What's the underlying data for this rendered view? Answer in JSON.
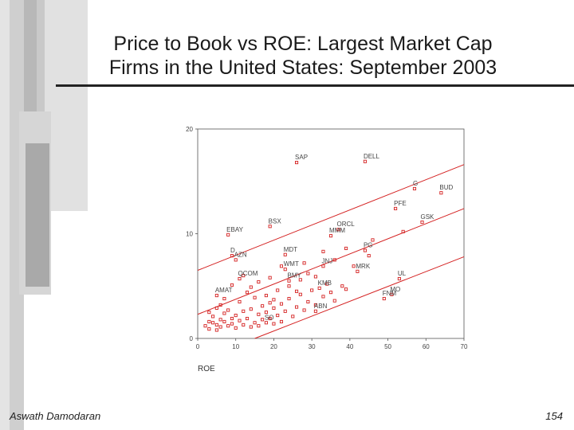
{
  "slide": {
    "title_line1": "Price to Book vs ROE: Largest Market Cap",
    "title_line2": "Firms in the United States: September 2003",
    "author": "Aswath Damodaran",
    "page_number": "154"
  },
  "chart_data": {
    "type": "scatter",
    "xlabel": "ROE",
    "ylabel": "",
    "xlim": [
      0,
      70
    ],
    "ylim": [
      0,
      20
    ],
    "x_ticks": [
      0,
      10,
      20,
      30,
      40,
      50,
      60,
      70
    ],
    "y_ticks": [
      {
        "value": 0,
        "label": "0"
      },
      {
        "value": 10,
        "label": "10"
      },
      {
        "value": 20,
        "label": "20"
      }
    ],
    "point_color": "#d42020",
    "line_color": "#d42020",
    "labeled_points": [
      {
        "label": "SAP",
        "x": 26,
        "y": 16.8
      },
      {
        "label": "DELL",
        "x": 44,
        "y": 16.9
      },
      {
        "label": "G",
        "x": 57,
        "y": 14.3
      },
      {
        "label": "BUD",
        "x": 64,
        "y": 13.9
      },
      {
        "label": "PFE",
        "x": 52,
        "y": 12.4
      },
      {
        "label": "GSK",
        "x": 59,
        "y": 11.1
      },
      {
        "label": "BSX",
        "x": 19,
        "y": 10.7
      },
      {
        "label": "EBAY",
        "x": 8,
        "y": 9.9
      },
      {
        "label": "ORCL",
        "x": 37,
        "y": 10.4
      },
      {
        "label": "MMM",
        "x": 35,
        "y": 9.8
      },
      {
        "label": "PG",
        "x": 44,
        "y": 8.4
      },
      {
        "label": "MDT",
        "x": 23,
        "y": 8.0
      },
      {
        "label": "D",
        "x": 9,
        "y": 7.9
      },
      {
        "label": "AZN",
        "x": 10,
        "y": 7.5
      },
      {
        "label": "WMT",
        "x": 23,
        "y": 6.6
      },
      {
        "label": "JNJ",
        "x": 33,
        "y": 6.9
      },
      {
        "label": "MRK",
        "x": 42,
        "y": 6.4
      },
      {
        "label": "QCOM",
        "x": 11,
        "y": 5.7
      },
      {
        "label": "BMY",
        "x": 24,
        "y": 5.5
      },
      {
        "label": "UL",
        "x": 53,
        "y": 5.7
      },
      {
        "label": "KMB",
        "x": 32,
        "y": 4.8
      },
      {
        "label": "AMAT",
        "x": 5,
        "y": 4.1
      },
      {
        "label": "MO",
        "x": 51,
        "y": 4.2
      },
      {
        "label": "FNM",
        "x": 49,
        "y": 3.8
      },
      {
        "label": "ABN",
        "x": 31,
        "y": 2.6
      },
      {
        "label": "SO",
        "x": 18,
        "y": 1.5
      }
    ],
    "unlabeled_points": [
      [
        2,
        1.2
      ],
      [
        3,
        1.6
      ],
      [
        3,
        0.9
      ],
      [
        4,
        2.1
      ],
      [
        4,
        1.5
      ],
      [
        5,
        1.3
      ],
      [
        5,
        0.8
      ],
      [
        6,
        1.8
      ],
      [
        6,
        1.1
      ],
      [
        7,
        2.4
      ],
      [
        7,
        1.6
      ],
      [
        8,
        1.2
      ],
      [
        9,
        1.9
      ],
      [
        9,
        1.4
      ],
      [
        10,
        2.2
      ],
      [
        10,
        1.0
      ],
      [
        11,
        1.7
      ],
      [
        12,
        1.3
      ],
      [
        12,
        2.6
      ],
      [
        13,
        1.9
      ],
      [
        14,
        1.1
      ],
      [
        14,
        2.8
      ],
      [
        15,
        1.5
      ],
      [
        16,
        2.3
      ],
      [
        16,
        1.2
      ],
      [
        17,
        3.1
      ],
      [
        17,
        1.8
      ],
      [
        18,
        2.5
      ],
      [
        19,
        1.9
      ],
      [
        19,
        3.4
      ],
      [
        20,
        1.4
      ],
      [
        20,
        2.9
      ],
      [
        21,
        2.2
      ],
      [
        22,
        3.3
      ],
      [
        22,
        1.6
      ],
      [
        23,
        2.6
      ],
      [
        24,
        3.8
      ],
      [
        25,
        2.1
      ],
      [
        26,
        3.0
      ],
      [
        27,
        4.2
      ],
      [
        28,
        2.7
      ],
      [
        29,
        3.5
      ],
      [
        30,
        4.6
      ],
      [
        31,
        3.2
      ],
      [
        33,
        4.0
      ],
      [
        34,
        5.2
      ],
      [
        35,
        4.4
      ],
      [
        36,
        3.6
      ],
      [
        38,
        5.0
      ],
      [
        39,
        4.7
      ],
      [
        6,
        3.2
      ],
      [
        8,
        2.7
      ],
      [
        11,
        3.5
      ],
      [
        13,
        4.4
      ],
      [
        15,
        3.9
      ],
      [
        18,
        4.1
      ],
      [
        20,
        3.7
      ],
      [
        21,
        4.6
      ],
      [
        24,
        5.0
      ],
      [
        26,
        4.5
      ],
      [
        27,
        5.6
      ],
      [
        29,
        6.2
      ],
      [
        31,
        5.9
      ],
      [
        36,
        7.5
      ],
      [
        39,
        8.6
      ],
      [
        41,
        6.9
      ],
      [
        45,
        7.9
      ],
      [
        3,
        2.5
      ],
      [
        9,
        5.1
      ],
      [
        12,
        6.0
      ],
      [
        16,
        5.4
      ],
      [
        22,
        6.9
      ],
      [
        28,
        7.2
      ],
      [
        33,
        8.3
      ],
      [
        46,
        9.4
      ],
      [
        54,
        10.2
      ],
      [
        5,
        2.9
      ],
      [
        7,
        3.8
      ],
      [
        14,
        4.9
      ],
      [
        19,
        5.8
      ]
    ],
    "regression_lines": [
      {
        "from": [
          0,
          6.5
        ],
        "to": [
          70,
          16.6
        ]
      },
      {
        "from": [
          0,
          2.3
        ],
        "to": [
          70,
          12.4
        ]
      },
      {
        "from": [
          15,
          0
        ],
        "to": [
          70,
          7.8
        ]
      }
    ]
  }
}
